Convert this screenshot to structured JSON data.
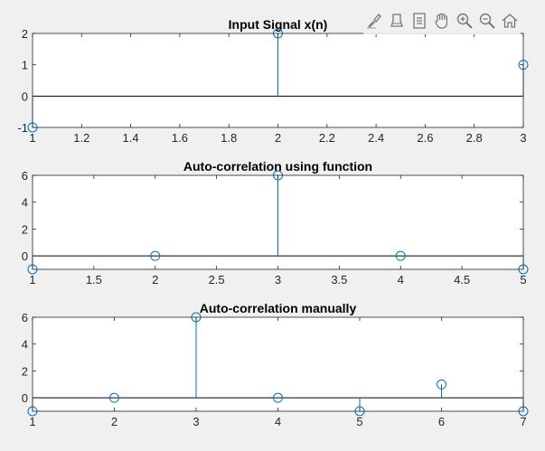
{
  "toolbar": {
    "icons": [
      "brush-icon",
      "data-cursor-icon",
      "datatip-icon",
      "pan-hand-icon",
      "zoom-in-icon",
      "zoom-out-icon",
      "home-icon"
    ]
  },
  "colors": {
    "stem": "#0072bd",
    "baseline": "#000000",
    "axes_bg": "#ffffff",
    "figure_bg": "#f0f0f0"
  },
  "chart_data": [
    {
      "type": "stem",
      "title": "Input Signal x(n)",
      "x": [
        1,
        2,
        3
      ],
      "y": [
        -1,
        2,
        1
      ],
      "xlim": [
        1,
        3
      ],
      "ylim": [
        -1,
        2
      ],
      "xticks": [
        1,
        1.2,
        1.4,
        1.6,
        1.8,
        2,
        2.2,
        2.4,
        2.6,
        2.8,
        3
      ],
      "yticks": [
        -1,
        0,
        1,
        2
      ],
      "grid": false
    },
    {
      "type": "stem",
      "title": "Auto-correlation using function",
      "x": [
        1,
        2,
        3,
        4,
        5
      ],
      "y": [
        -1,
        0,
        6,
        0,
        -1
      ],
      "xlim": [
        1,
        5
      ],
      "ylim": [
        -1,
        6
      ],
      "xticks": [
        1,
        1.5,
        2,
        2.5,
        3,
        3.5,
        4,
        4.5,
        5
      ],
      "yticks": [
        0,
        2,
        4,
        6
      ],
      "grid": false
    },
    {
      "type": "stem",
      "title": "Auto-correlation manually",
      "x": [
        1,
        2,
        3,
        4,
        5,
        6,
        7
      ],
      "y": [
        -1,
        0,
        6,
        0,
        -1,
        1,
        -1
      ],
      "xlim": [
        1,
        7
      ],
      "ylim": [
        -1,
        6
      ],
      "xticks": [
        1,
        2,
        3,
        4,
        5,
        6,
        7
      ],
      "yticks": [
        0,
        2,
        4,
        6
      ],
      "grid": false
    }
  ]
}
